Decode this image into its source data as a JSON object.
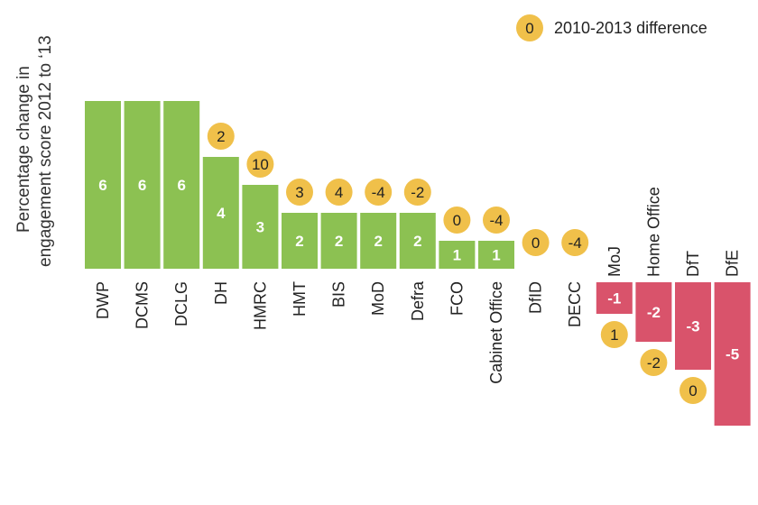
{
  "chart_data": {
    "type": "bar",
    "ylabel_line1": "Percentage change in",
    "ylabel_line2": "engagement score 2012 to ‘13",
    "legend_label": "2010-2013 difference",
    "legend_marker_value": "0",
    "categories": [
      "DWP",
      "DCMS",
      "DCLG",
      "DH",
      "HMRC",
      "HMT",
      "BIS",
      "MoD",
      "Defra",
      "FCO",
      "Cabinet Office",
      "DfID",
      "DECC",
      "MoJ",
      "Home Office",
      "DfT",
      "DfE"
    ],
    "values": [
      6,
      6,
      6,
      4,
      3,
      2,
      2,
      2,
      2,
      1,
      1,
      0,
      0,
      -1,
      -2,
      -3,
      -5
    ],
    "differences": [
      null,
      null,
      null,
      2,
      10,
      3,
      4,
      -4,
      -2,
      0,
      -4,
      0,
      -4,
      1,
      -2,
      0,
      null
    ],
    "colors": {
      "positive": "#8cc152",
      "negative": "#d9536b",
      "marker": "#f0c04a"
    }
  }
}
